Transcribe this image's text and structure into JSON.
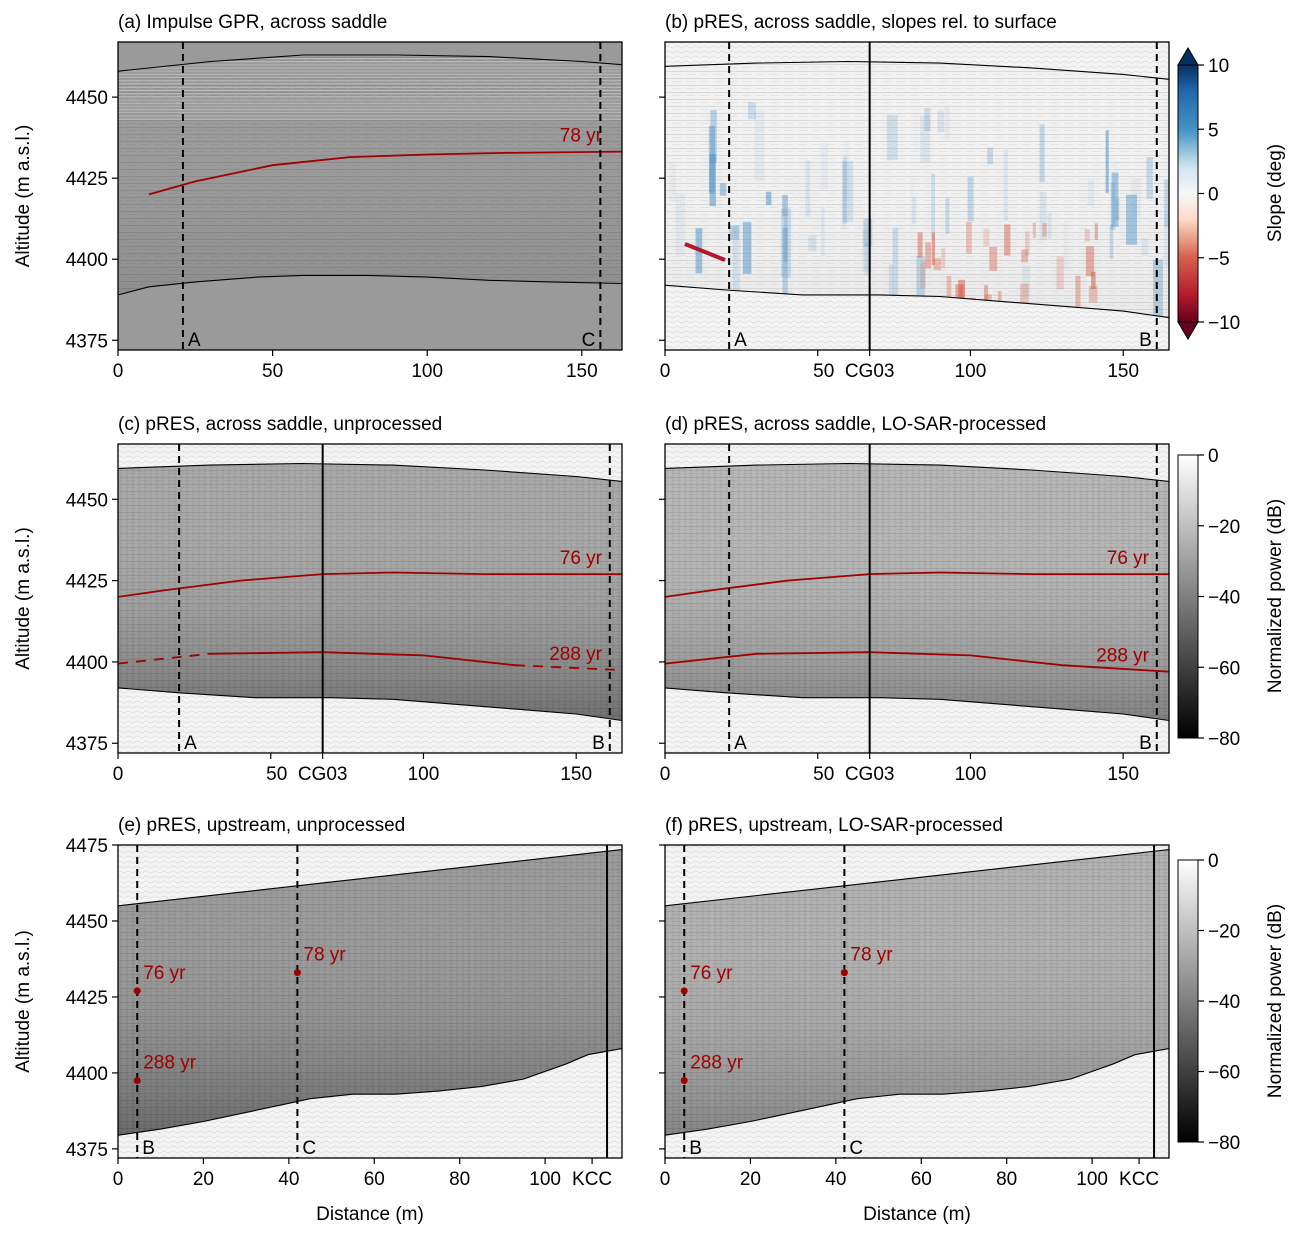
{
  "colorbars": {
    "slope": {
      "label": "Slope (deg)",
      "ticks": [
        10,
        5,
        0,
        -5,
        -10
      ],
      "tick_labels": [
        "10",
        "5",
        "0",
        "−5",
        "−10"
      ],
      "range": [
        -10,
        10
      ],
      "colormap": "RdBu",
      "extend": "both"
    },
    "power_top": {
      "label": "Normalized power (dB)",
      "ticks": [
        0,
        -20,
        -40,
        -60,
        -80
      ],
      "tick_labels": [
        "0",
        "−20",
        "−40",
        "−60",
        "−80"
      ],
      "range": [
        -80,
        0
      ],
      "colormap": "gray"
    },
    "power_bottom": {
      "label": "Normalized power (dB)",
      "ticks": [
        0,
        -20,
        -40,
        -60,
        -80
      ],
      "tick_labels": [
        "0",
        "−20",
        "−40",
        "−60",
        "−80"
      ],
      "range": [
        -80,
        0
      ],
      "colormap": "gray"
    }
  },
  "chart_data": [
    {
      "type": "heatmap",
      "panel": "a",
      "title": "(a) Impulse GPR, across saddle",
      "ylabel": "Altitude (m a.s.l.)",
      "xlabel": "",
      "xlim": [
        0,
        163
      ],
      "ylim": [
        4372,
        4467
      ],
      "xticks": [
        0,
        50,
        100,
        150
      ],
      "xtick_labels": [
        "0",
        "50",
        "100",
        "150"
      ],
      "yticks": [
        4375,
        4400,
        4425,
        4450
      ],
      "ytick_labels": [
        "4375",
        "4400",
        "4425",
        "4450"
      ],
      "surface": {
        "x": [
          0,
          30,
          60,
          90,
          120,
          150,
          163
        ],
        "y": [
          4458,
          4461,
          4463,
          4463,
          4462.5,
          4461,
          4460
        ]
      },
      "bed": {
        "x": [
          0,
          10,
          25,
          45,
          60,
          80,
          100,
          120,
          140,
          163
        ],
        "y": [
          4389,
          4391.5,
          4393,
          4394.5,
          4395,
          4395,
          4394.5,
          4393.5,
          4393,
          4392.5
        ]
      },
      "vertical_lines": [
        {
          "x": 21,
          "label": "A",
          "style": "dashed"
        },
        {
          "x": 156,
          "label": "C",
          "style": "dashed"
        }
      ],
      "horizons": [
        {
          "label": "78 yr",
          "x": [
            10,
            25,
            50,
            75,
            100,
            125,
            163
          ],
          "y": [
            4420,
            4424,
            4429,
            4431.5,
            4432.3,
            4432.8,
            4433.2
          ],
          "style": "solid"
        }
      ]
    },
    {
      "type": "heatmap",
      "panel": "b",
      "title": "(b) pRES, across saddle, slopes rel. to surface",
      "ylabel": "",
      "xlabel": "",
      "xlim": [
        0,
        165
      ],
      "ylim": [
        4372,
        4467
      ],
      "xticks": [
        0,
        50,
        100,
        150
      ],
      "xtick_labels": [
        "0",
        "50",
        "100",
        "150"
      ],
      "yticks": [
        4375,
        4400,
        4425,
        4450
      ],
      "ytick_labels": [
        "",
        "",
        "",
        ""
      ],
      "special_xtick": {
        "x": 67,
        "label": "CG03"
      },
      "surface": {
        "x": [
          0,
          30,
          60,
          90,
          120,
          150,
          165
        ],
        "y": [
          4459.5,
          4460.5,
          4461,
          4460.5,
          4459,
          4457,
          4455.5
        ]
      },
      "bed": {
        "x": [
          0,
          20,
          45,
          70,
          90,
          110,
          130,
          150,
          165
        ],
        "y": [
          4392,
          4390.5,
          4389,
          4389,
          4388.5,
          4387,
          4385.5,
          4384,
          4382
        ]
      },
      "vertical_lines": [
        {
          "x": 21,
          "label": "A",
          "style": "dashed"
        },
        {
          "x": 67,
          "label": "",
          "style": "solid"
        },
        {
          "x": 161,
          "label": "B",
          "style": "dashed"
        }
      ],
      "horizons": []
    },
    {
      "type": "heatmap",
      "panel": "c",
      "title": "(c) pRES, across saddle, unprocessed",
      "ylabel": "Altitude (m a.s.l.)",
      "xlabel": "",
      "xlim": [
        0,
        165
      ],
      "ylim": [
        4372,
        4467
      ],
      "xticks": [
        0,
        50,
        100,
        150
      ],
      "xtick_labels": [
        "0",
        "50",
        "100",
        "150"
      ],
      "yticks": [
        4375,
        4400,
        4425,
        4450
      ],
      "ytick_labels": [
        "4375",
        "4400",
        "4425",
        "4450"
      ],
      "special_xtick": {
        "x": 67,
        "label": "CG03"
      },
      "surface": {
        "x": [
          0,
          30,
          60,
          90,
          120,
          150,
          165
        ],
        "y": [
          4459.5,
          4460.5,
          4461,
          4460.5,
          4459,
          4457,
          4455.5
        ]
      },
      "bed": {
        "x": [
          0,
          20,
          45,
          70,
          90,
          110,
          130,
          150,
          165
        ],
        "y": [
          4392,
          4390.5,
          4389,
          4389,
          4388.5,
          4387,
          4385.5,
          4384,
          4382
        ]
      },
      "vertical_lines": [
        {
          "x": 20,
          "label": "A",
          "style": "dashed"
        },
        {
          "x": 67,
          "label": "",
          "style": "solid"
        },
        {
          "x": 161,
          "label": "B",
          "style": "dashed"
        }
      ],
      "horizons": [
        {
          "label": "76 yr",
          "x": [
            0,
            15,
            40,
            67,
            90,
            120,
            165
          ],
          "y": [
            4420,
            4422,
            4425,
            4427,
            4427.5,
            4427,
            4427
          ],
          "style": "solid"
        },
        {
          "label": "288 yr",
          "x": [
            0,
            30,
            67,
            100,
            130,
            165
          ],
          "y": [
            4399.5,
            4402.5,
            4403,
            4402,
            4399,
            4397.5
          ],
          "style": "mixed"
        }
      ]
    },
    {
      "type": "heatmap",
      "panel": "d",
      "title": "(d) pRES, across saddle, LO-SAR-processed",
      "ylabel": "",
      "xlabel": "",
      "xlim": [
        0,
        165
      ],
      "ylim": [
        4372,
        4467
      ],
      "xticks": [
        0,
        50,
        100,
        150
      ],
      "xtick_labels": [
        "0",
        "50",
        "100",
        "150"
      ],
      "yticks": [
        4375,
        4400,
        4425,
        4450
      ],
      "ytick_labels": [
        "",
        "",
        "",
        ""
      ],
      "special_xtick": {
        "x": 67,
        "label": "CG03"
      },
      "surface": {
        "x": [
          0,
          30,
          60,
          90,
          120,
          150,
          165
        ],
        "y": [
          4459.5,
          4460.5,
          4461,
          4460.5,
          4459,
          4457,
          4455.5
        ]
      },
      "bed": {
        "x": [
          0,
          20,
          45,
          70,
          90,
          110,
          130,
          150,
          165
        ],
        "y": [
          4392,
          4390.5,
          4389,
          4389,
          4388.5,
          4387,
          4385.5,
          4384,
          4382
        ]
      },
      "vertical_lines": [
        {
          "x": 21,
          "label": "A",
          "style": "dashed"
        },
        {
          "x": 67,
          "label": "",
          "style": "solid"
        },
        {
          "x": 161,
          "label": "B",
          "style": "dashed"
        }
      ],
      "horizons": [
        {
          "label": "76 yr",
          "x": [
            0,
            15,
            40,
            67,
            90,
            120,
            165
          ],
          "y": [
            4420,
            4422,
            4425,
            4427,
            4427.5,
            4427,
            4427
          ],
          "style": "solid"
        },
        {
          "label": "288 yr",
          "x": [
            0,
            30,
            67,
            100,
            130,
            165
          ],
          "y": [
            4399.5,
            4402.5,
            4403,
            4402,
            4399,
            4397
          ],
          "style": "solid"
        }
      ]
    },
    {
      "type": "heatmap",
      "panel": "e",
      "title": "(e) pRES, upstream, unprocessed",
      "ylabel": "Altitude (m a.s.l.)",
      "xlabel": "Distance (m)",
      "xlim": [
        0,
        118
      ],
      "ylim": [
        4372,
        4475
      ],
      "xticks": [
        0,
        20,
        40,
        60,
        80,
        100
      ],
      "xtick_labels": [
        "0",
        "20",
        "40",
        "60",
        "80",
        "100"
      ],
      "yticks": [
        4375,
        4400,
        4425,
        4450,
        4475
      ],
      "ytick_labels": [
        "4375",
        "4400",
        "4425",
        "4450",
        "4475"
      ],
      "special_xtick": {
        "x": 111,
        "label": "KCC"
      },
      "surface": {
        "x": [
          0,
          118
        ],
        "y": [
          4455,
          4473.5
        ]
      },
      "bed": {
        "x": [
          0,
          10,
          20,
          30,
          40,
          45,
          55,
          65,
          75,
          85,
          95,
          105,
          110,
          118
        ],
        "y": [
          4379.5,
          4381.5,
          4384,
          4387,
          4390,
          4391.5,
          4393,
          4393,
          4394,
          4395.5,
          4398,
          4403,
          4406,
          4408
        ]
      },
      "vertical_lines": [
        {
          "x": 4.5,
          "label": "B",
          "style": "dashed"
        },
        {
          "x": 42,
          "label": "C",
          "style": "dashed"
        },
        {
          "x": 114.5,
          "label": "",
          "style": "solid"
        }
      ],
      "horizons": [],
      "points": [
        {
          "x": 4.5,
          "y": 4427,
          "label": "76 yr"
        },
        {
          "x": 4.5,
          "y": 4397.5,
          "label": "288 yr"
        },
        {
          "x": 42,
          "y": 4433,
          "label": "78 yr"
        }
      ]
    },
    {
      "type": "heatmap",
      "panel": "f",
      "title": "(f) pRES, upstream, LO-SAR-processed",
      "ylabel": "",
      "xlabel": "Distance (m)",
      "xlim": [
        0,
        118
      ],
      "ylim": [
        4372,
        4475
      ],
      "xticks": [
        0,
        20,
        40,
        60,
        80,
        100
      ],
      "xtick_labels": [
        "0",
        "20",
        "40",
        "60",
        "80",
        "100"
      ],
      "yticks": [
        4375,
        4400,
        4425,
        4450,
        4475
      ],
      "ytick_labels": [
        "",
        "",
        "",
        "",
        ""
      ],
      "special_xtick": {
        "x": 111,
        "label": "KCC"
      },
      "surface": {
        "x": [
          0,
          118
        ],
        "y": [
          4455,
          4473.5
        ]
      },
      "bed": {
        "x": [
          0,
          10,
          20,
          30,
          40,
          45,
          55,
          65,
          75,
          85,
          95,
          105,
          110,
          118
        ],
        "y": [
          4379.5,
          4381.5,
          4384,
          4387,
          4390,
          4391.5,
          4393,
          4393,
          4394,
          4395.5,
          4398,
          4403,
          4406,
          4408
        ]
      },
      "vertical_lines": [
        {
          "x": 4.5,
          "label": "B",
          "style": "dashed"
        },
        {
          "x": 42,
          "label": "C",
          "style": "dashed"
        },
        {
          "x": 114.5,
          "label": "",
          "style": "solid"
        }
      ],
      "horizons": [],
      "points": [
        {
          "x": 4.5,
          "y": 4427,
          "label": "76 yr"
        },
        {
          "x": 4.5,
          "y": 4397.5,
          "label": "288 yr"
        },
        {
          "x": 42,
          "y": 4433,
          "label": "78 yr"
        }
      ]
    }
  ]
}
